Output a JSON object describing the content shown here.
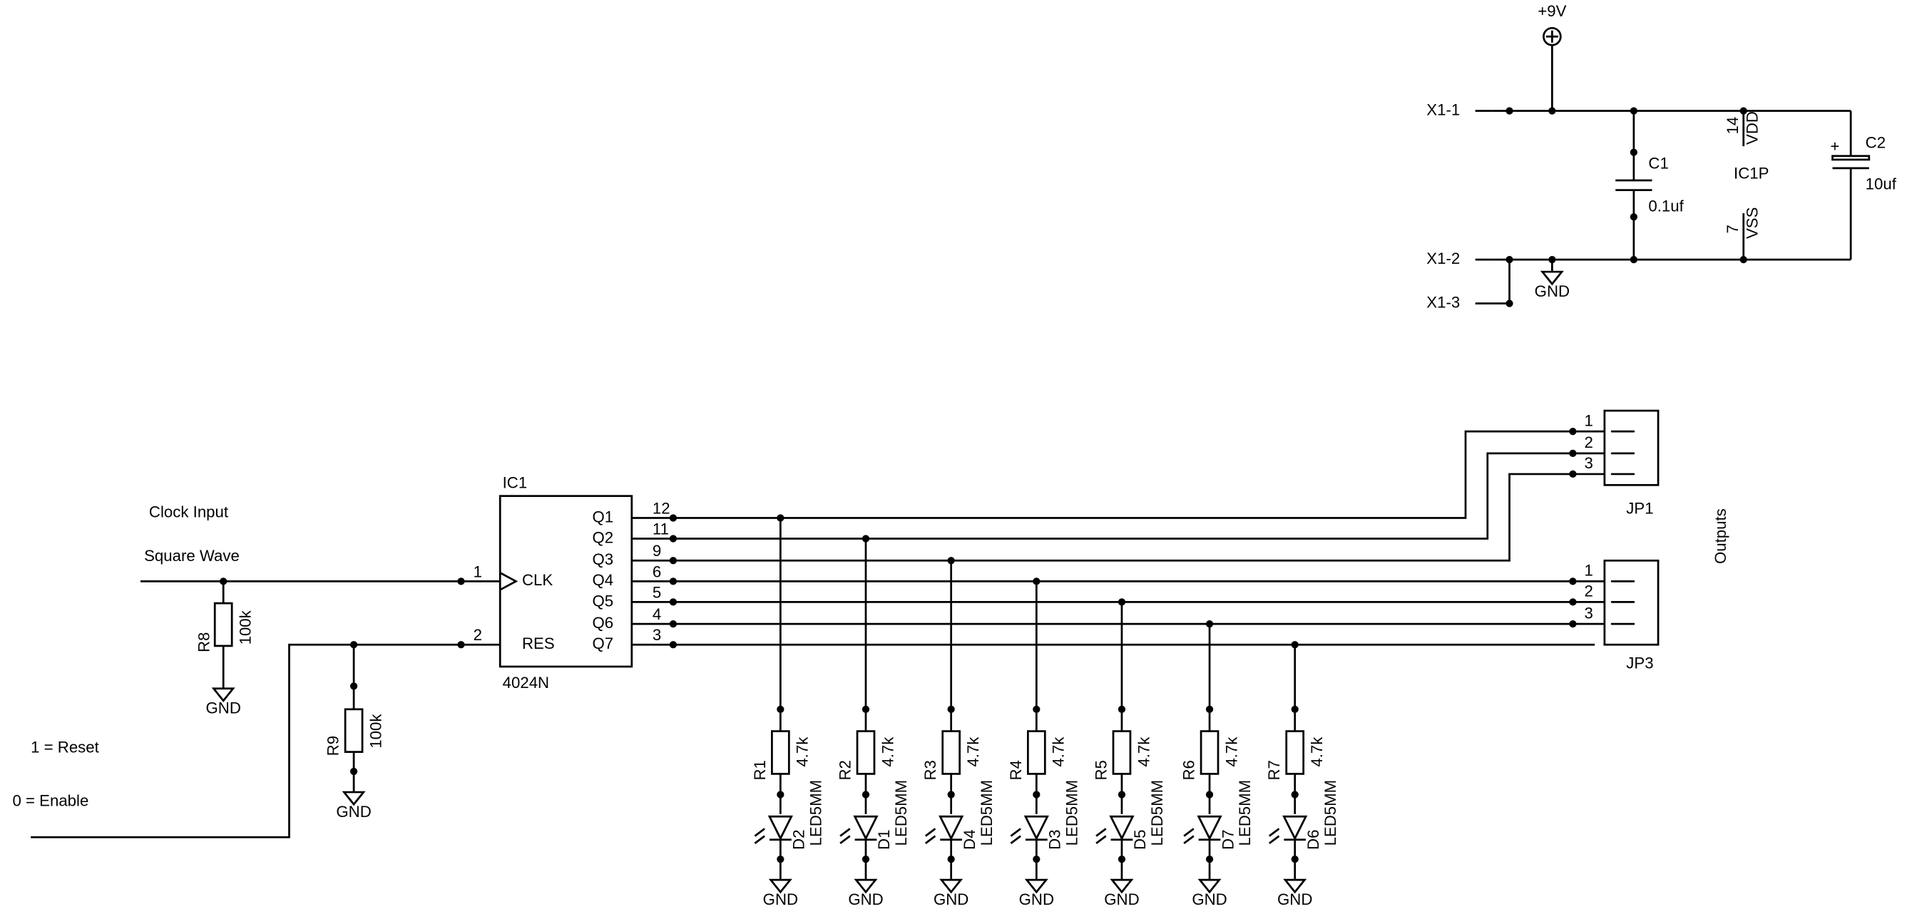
{
  "notes": {
    "clock_line1": "Clock Input",
    "clock_line2": "Square Wave",
    "reset": "1 = Reset",
    "enable": "0 = Enable",
    "outputs": "Outputs"
  },
  "power": {
    "supply": "+9V",
    "gnd": "GND",
    "connectors": [
      "X1-1",
      "X1-2",
      "X1-3"
    ],
    "c1": {
      "name": "C1",
      "value": "0.1uf"
    },
    "c2": {
      "name": "C2",
      "value": "10uf",
      "polarity": "+"
    },
    "ic": {
      "name": "IC1P",
      "vdd_pin": "14",
      "vdd": "VDD",
      "vss_pin": "7",
      "vss": "VSS"
    }
  },
  "ic1": {
    "name": "IC1",
    "part": "4024N",
    "inputs": [
      {
        "pin": "1",
        "label": "CLK"
      },
      {
        "pin": "2",
        "label": "RES"
      }
    ],
    "outputs": [
      {
        "label": "Q1",
        "pin": "12"
      },
      {
        "label": "Q2",
        "pin": "11"
      },
      {
        "label": "Q3",
        "pin": "9"
      },
      {
        "label": "Q4",
        "pin": "6"
      },
      {
        "label": "Q5",
        "pin": "5"
      },
      {
        "label": "Q6",
        "pin": "4"
      },
      {
        "label": "Q7",
        "pin": "3"
      }
    ]
  },
  "pulldowns": [
    {
      "name": "R8",
      "value": "100k",
      "gnd": "GND"
    },
    {
      "name": "R9",
      "value": "100k",
      "gnd": "GND"
    }
  ],
  "stages": [
    {
      "resistor": "R1",
      "value": "4.7k",
      "led": "D2",
      "led_part": "LED5MM",
      "gnd": "GND"
    },
    {
      "resistor": "R2",
      "value": "4.7k",
      "led": "D1",
      "led_part": "LED5MM",
      "gnd": "GND"
    },
    {
      "resistor": "R3",
      "value": "4.7k",
      "led": "D4",
      "led_part": "LED5MM",
      "gnd": "GND"
    },
    {
      "resistor": "R4",
      "value": "4.7k",
      "led": "D3",
      "led_part": "LED5MM",
      "gnd": "GND"
    },
    {
      "resistor": "R5",
      "value": "4.7k",
      "led": "D5",
      "led_part": "LED5MM",
      "gnd": "GND"
    },
    {
      "resistor": "R6",
      "value": "4.7k",
      "led": "D7",
      "led_part": "LED5MM",
      "gnd": "GND"
    },
    {
      "resistor": "R7",
      "value": "4.7k",
      "led": "D6",
      "led_part": "LED5MM",
      "gnd": "GND"
    }
  ],
  "connectors": [
    {
      "name": "JP1",
      "pins": [
        "1",
        "2",
        "3"
      ]
    },
    {
      "name": "JP3",
      "pins": [
        "1",
        "2",
        "3"
      ]
    }
  ]
}
